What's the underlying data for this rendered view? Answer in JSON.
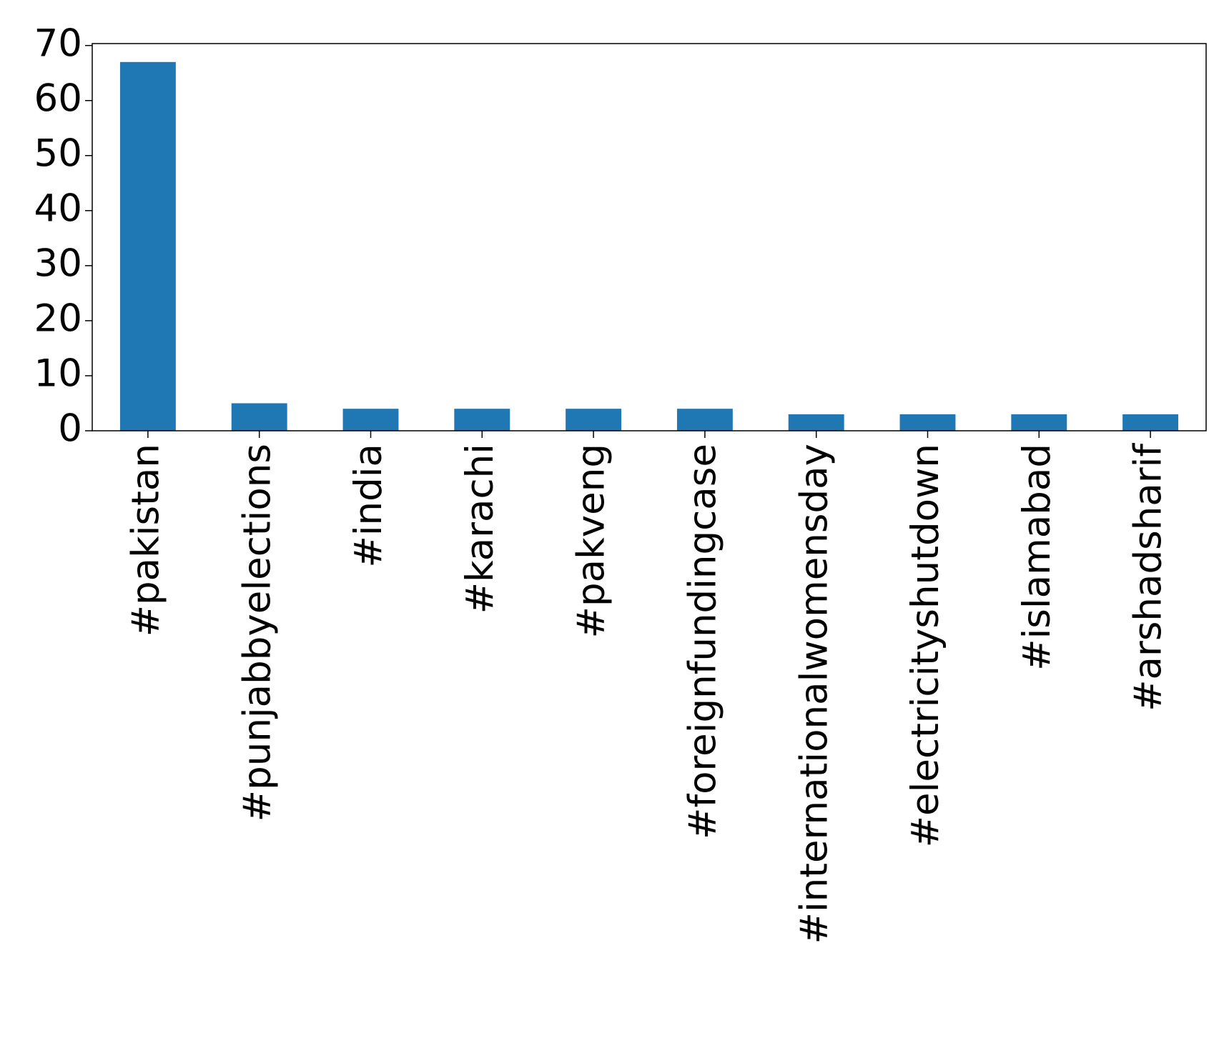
{
  "chart_data": {
    "type": "bar",
    "categories": [
      "#pakistan",
      "#punjabbyelections",
      "#india",
      "#karachi",
      "#pakveng",
      "#foreignfundingcase",
      "#internationalwomensday",
      "#electricityshutdown",
      "#islamabad",
      "#arshadsharif"
    ],
    "values": [
      67,
      5,
      4,
      4,
      4,
      4,
      3,
      3,
      3,
      3
    ],
    "color": "#1f77b4",
    "ylim": [
      0,
      70.35
    ],
    "yticks": [
      0,
      10,
      20,
      30,
      40,
      50,
      60,
      70
    ],
    "grid": false
  }
}
